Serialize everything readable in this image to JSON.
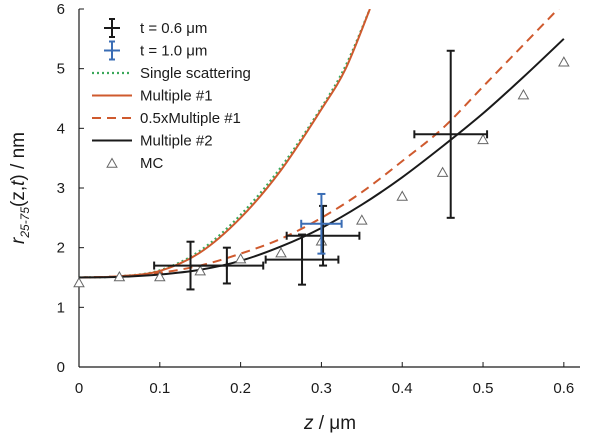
{
  "chart_data": {
    "type": "line",
    "xlabel": {
      "var": "z",
      "unit": " / μm"
    },
    "ylabel": {
      "main": "r",
      "sub": "25-75",
      "args_open": "(z,",
      "args_t": "t",
      "args_close": ") / nm"
    },
    "xlim": [
      0,
      0.62
    ],
    "ylim": [
      0,
      6
    ],
    "xticks": [
      0,
      0.1,
      0.2,
      0.3,
      0.4,
      0.5,
      0.6
    ],
    "xtick_labels": [
      "0",
      "0.1",
      "0.2",
      "0.3",
      "0.4",
      "0.5",
      "0.6"
    ],
    "yticks": [
      0,
      1,
      2,
      3,
      4,
      5,
      6
    ],
    "ytick_labels": [
      "0",
      "1",
      "2",
      "3",
      "4",
      "5",
      "6"
    ],
    "legend_position": "top-left",
    "colors": {
      "black": "#1a1a1a",
      "blue": "#3a6db5",
      "green": "#3aa85a",
      "orange": "#cf5a2e",
      "marker": "#666666"
    },
    "curves": [
      {
        "name": "Single scattering",
        "style": "dotted",
        "color": "#3aa85a",
        "x": [
          0,
          0.05,
          0.1,
          0.15,
          0.2,
          0.25,
          0.3,
          0.33,
          0.36
        ],
        "y": [
          1.5,
          1.52,
          1.62,
          1.95,
          2.55,
          3.35,
          4.35,
          5.05,
          6.0
        ]
      },
      {
        "name": "Multiple #1",
        "style": "solid",
        "color": "#cf5a2e",
        "x": [
          0,
          0.05,
          0.1,
          0.15,
          0.2,
          0.25,
          0.3,
          0.33,
          0.36
        ],
        "y": [
          1.5,
          1.52,
          1.61,
          1.92,
          2.5,
          3.3,
          4.32,
          5.0,
          6.0
        ]
      },
      {
        "name": "0.5xMultiple #1",
        "style": "dashed",
        "color": "#cf5a2e",
        "x": [
          0,
          0.05,
          0.1,
          0.15,
          0.2,
          0.25,
          0.3,
          0.35,
          0.4,
          0.45,
          0.5,
          0.55,
          0.6
        ],
        "y": [
          1.5,
          1.52,
          1.58,
          1.7,
          1.9,
          2.15,
          2.5,
          2.93,
          3.45,
          4.0,
          4.7,
          5.4,
          6.1
        ]
      },
      {
        "name": "Multiple #2",
        "style": "solid",
        "color": "#1a1a1a",
        "x": [
          0,
          0.05,
          0.1,
          0.15,
          0.2,
          0.25,
          0.3,
          0.35,
          0.4,
          0.45,
          0.5,
          0.55,
          0.6
        ],
        "y": [
          1.5,
          1.51,
          1.55,
          1.63,
          1.78,
          2.02,
          2.33,
          2.72,
          3.18,
          3.7,
          4.25,
          4.86,
          5.5
        ]
      }
    ],
    "errorbar_series": [
      {
        "name": "t = 0.6 μm",
        "color": "#1a1a1a",
        "points": [
          {
            "x": 0.138,
            "y": 1.7,
            "xerr": 0.045,
            "yerr": 0.4
          },
          {
            "x": 0.183,
            "y": 1.7,
            "xerr": 0.045,
            "yerr": 0.3
          },
          {
            "x": 0.276,
            "y": 1.8,
            "xerr": 0.045,
            "yerr": 0.42
          },
          {
            "x": 0.302,
            "y": 2.2,
            "xerr": 0.045,
            "yerr": 0.5
          },
          {
            "x": 0.46,
            "y": 3.9,
            "xerr": 0.045,
            "yerr": 1.4
          }
        ]
      },
      {
        "name": "t = 1.0 μm",
        "color": "#3a6db5",
        "points": [
          {
            "x": 0.3,
            "y": 2.4,
            "xerr": 0.025,
            "yerr": 0.5
          }
        ]
      }
    ],
    "scatter_series": {
      "name": "MC",
      "marker": "triangle-open",
      "color": "#666666",
      "x": [
        0,
        0.05,
        0.1,
        0.15,
        0.2,
        0.25,
        0.3,
        0.35,
        0.4,
        0.45,
        0.5,
        0.55,
        0.6
      ],
      "y": [
        1.4,
        1.5,
        1.5,
        1.6,
        1.8,
        1.9,
        2.1,
        2.45,
        2.85,
        3.25,
        3.8,
        4.55,
        5.1
      ]
    },
    "legend": [
      {
        "label": "t = 0.6 μm",
        "kind": "errorbar",
        "color": "#1a1a1a"
      },
      {
        "label": "t = 1.0 μm",
        "kind": "errorbar",
        "color": "#3a6db5"
      },
      {
        "label": "Single scattering",
        "kind": "dotted",
        "color": "#3aa85a"
      },
      {
        "label": "Multiple #1",
        "kind": "solid",
        "color": "#cf5a2e"
      },
      {
        "label": "0.5xMultiple #1",
        "kind": "dashed",
        "color": "#cf5a2e"
      },
      {
        "label": "Multiple #2",
        "kind": "solid",
        "color": "#1a1a1a"
      },
      {
        "label": "MC",
        "kind": "triangle",
        "color": "#666666"
      }
    ]
  }
}
